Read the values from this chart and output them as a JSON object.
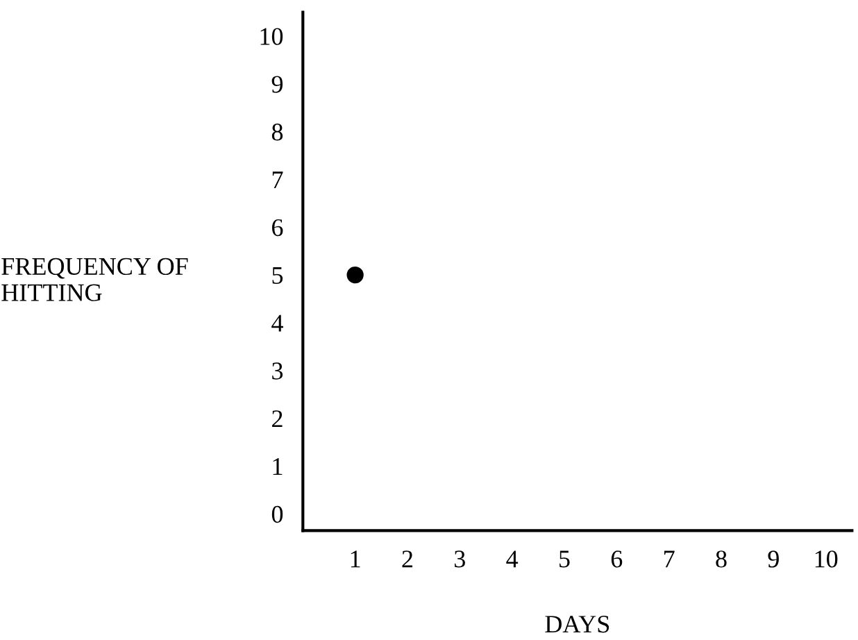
{
  "chart_data": {
    "type": "scatter",
    "xlabel": "DAYS",
    "ylabel": "FREQUENCY OF\nHITTING",
    "x": [
      1
    ],
    "series": [
      {
        "color": "#000000",
        "values": [
          5
        ]
      }
    ],
    "xlim": [
      0,
      10.5
    ],
    "ylim": [
      -0.35,
      10.5
    ],
    "xticks": [
      1,
      2,
      3,
      4,
      5,
      6,
      7,
      8,
      9,
      10
    ],
    "yticks": [
      0,
      1,
      2,
      3,
      4,
      5,
      6,
      7,
      8,
      9,
      10
    ],
    "marker": "circle",
    "grid": false,
    "legend": false
  }
}
